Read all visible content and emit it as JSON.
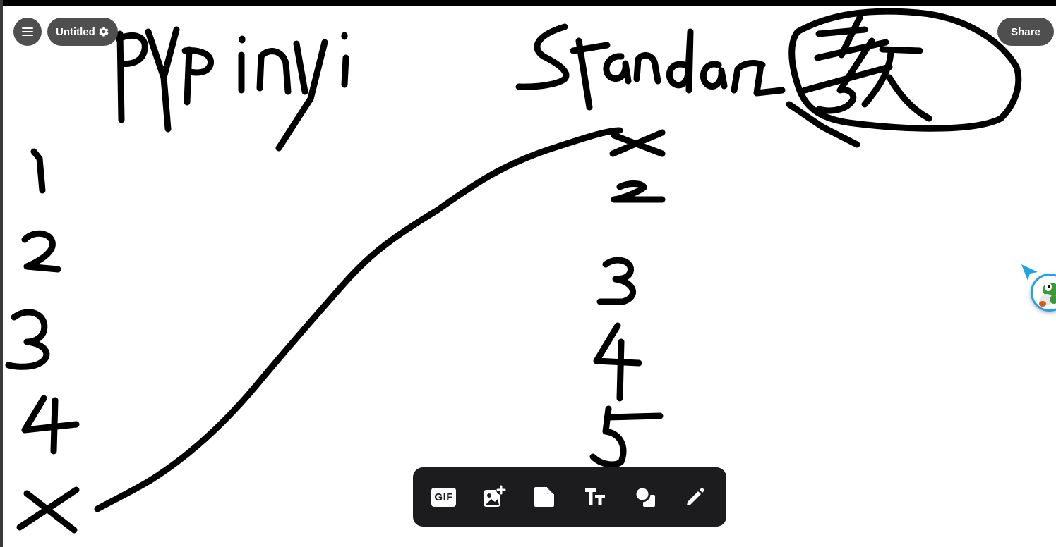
{
  "document": {
    "title": "Untitled"
  },
  "header": {
    "menu_icon": "hamburger-icon",
    "settings_icon": "gear-icon",
    "share_label": "Share"
  },
  "toolbar": {
    "tools": [
      {
        "name": "gif",
        "label": "GIF",
        "icon": "gif-icon"
      },
      {
        "name": "image",
        "icon": "add-image-icon"
      },
      {
        "name": "sticky-note",
        "icon": "sticky-note-icon"
      },
      {
        "name": "text",
        "icon": "text-icon"
      },
      {
        "name": "shapes",
        "icon": "shapes-icon"
      },
      {
        "name": "pen",
        "icon": "pen-icon"
      }
    ]
  },
  "collaborator": {
    "cursor_color": "#1fa3e6",
    "avatar_icon": "yoshi-avatar"
  },
  "colors": {
    "ink": "#000000",
    "pill_background": "#4f4f4f",
    "toolbar_background": "#1c1c1e",
    "canvas_background": "#ffffff"
  }
}
